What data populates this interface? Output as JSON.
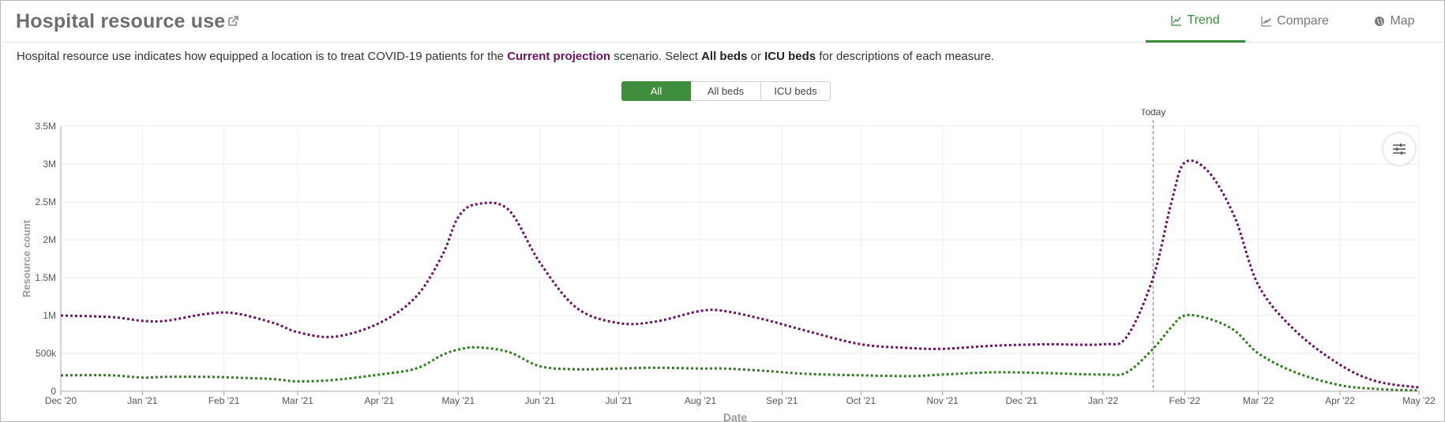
{
  "header": {
    "title": "Hospital resource use",
    "tabs": [
      {
        "label": "Trend",
        "active": true
      },
      {
        "label": "Compare",
        "active": false
      },
      {
        "label": "Map",
        "active": false
      }
    ]
  },
  "description": {
    "prefix": "Hospital resource use indicates how equipped a location is to treat COVID-19 patients for the ",
    "scenario": "Current projection",
    "middle": " scenario. Select ",
    "all_beds": "All beds",
    "or": " or ",
    "icu_beds": "ICU beds",
    "suffix": " for descriptions of each measure."
  },
  "toggle": {
    "options": [
      "All",
      "All beds",
      "ICU beds"
    ],
    "selected": "All"
  },
  "colors": {
    "accent": "#3e8e3e",
    "all_beds_series": "#6b1360",
    "icu_series": "#2e7d1e"
  },
  "chart_data": {
    "type": "line",
    "xlabel": "Date",
    "ylabel": "Resource count",
    "xlim": [
      "2020-12-01",
      "2022-05-01"
    ],
    "ylim": [
      0,
      3500000
    ],
    "x_ticks": [
      {
        "date": "2020-12-01",
        "label": "Dec '20"
      },
      {
        "date": "2021-01-01",
        "label": "Jan '21"
      },
      {
        "date": "2021-02-01",
        "label": "Feb '21"
      },
      {
        "date": "2021-03-01",
        "label": "Mar '21"
      },
      {
        "date": "2021-04-01",
        "label": "Apr '21"
      },
      {
        "date": "2021-05-01",
        "label": "May '21"
      },
      {
        "date": "2021-06-01",
        "label": "Jun '21"
      },
      {
        "date": "2021-07-01",
        "label": "Jul '21"
      },
      {
        "date": "2021-08-01",
        "label": "Aug '21"
      },
      {
        "date": "2021-09-01",
        "label": "Sep '21"
      },
      {
        "date": "2021-10-01",
        "label": "Oct '21"
      },
      {
        "date": "2021-11-01",
        "label": "Nov '21"
      },
      {
        "date": "2021-12-01",
        "label": "Dec '21"
      },
      {
        "date": "2022-01-01",
        "label": "Jan '22"
      },
      {
        "date": "2022-02-01",
        "label": "Feb '22"
      },
      {
        "date": "2022-03-01",
        "label": "Mar '22"
      },
      {
        "date": "2022-04-01",
        "label": "Apr '22"
      },
      {
        "date": "2022-05-01",
        "label": "May '22"
      }
    ],
    "y_ticks": [
      {
        "value": 0,
        "label": "0"
      },
      {
        "value": 500000,
        "label": "500k"
      },
      {
        "value": 1000000,
        "label": "1M"
      },
      {
        "value": 1500000,
        "label": "1.5M"
      },
      {
        "value": 2000000,
        "label": "2M"
      },
      {
        "value": 2500000,
        "label": "2.5M"
      },
      {
        "value": 3000000,
        "label": "3M"
      },
      {
        "value": 3500000,
        "label": "3.5M"
      }
    ],
    "today_marker": {
      "date": "2022-01-20",
      "label": "Today"
    },
    "grid": true,
    "series": [
      {
        "style": "dotted",
        "color": "#6b1360",
        "x": [
          "2020-12-01",
          "2020-12-20",
          "2021-01-01",
          "2021-01-10",
          "2021-01-25",
          "2021-02-05",
          "2021-02-20",
          "2021-03-01",
          "2021-03-15",
          "2021-04-01",
          "2021-04-15",
          "2021-04-25",
          "2021-05-01",
          "2021-05-08",
          "2021-05-20",
          "2021-06-01",
          "2021-06-15",
          "2021-07-01",
          "2021-07-15",
          "2021-08-01",
          "2021-08-10",
          "2021-08-25",
          "2021-09-10",
          "2021-10-01",
          "2021-10-20",
          "2021-11-01",
          "2021-11-20",
          "2021-12-10",
          "2022-01-01",
          "2022-01-10",
          "2022-01-20",
          "2022-01-27",
          "2022-02-01",
          "2022-02-10",
          "2022-02-20",
          "2022-03-01",
          "2022-03-15",
          "2022-04-01",
          "2022-04-15",
          "2022-05-01"
        ],
        "y": [
          1000000,
          980000,
          930000,
          930000,
          1020000,
          1030000,
          900000,
          780000,
          720000,
          900000,
          1250000,
          1800000,
          2300000,
          2470000,
          2400000,
          1700000,
          1100000,
          900000,
          920000,
          1060000,
          1060000,
          950000,
          800000,
          620000,
          570000,
          560000,
          600000,
          620000,
          620000,
          720000,
          1500000,
          2500000,
          3020000,
          2900000,
          2300000,
          1400000,
          800000,
          350000,
          130000,
          50000
        ]
      },
      {
        "style": "dotted",
        "color": "#2e7d1e",
        "x": [
          "2020-12-01",
          "2020-12-20",
          "2021-01-01",
          "2021-01-10",
          "2021-01-25",
          "2021-02-05",
          "2021-02-20",
          "2021-03-01",
          "2021-03-15",
          "2021-04-01",
          "2021-04-15",
          "2021-04-25",
          "2021-05-01",
          "2021-05-08",
          "2021-05-20",
          "2021-06-01",
          "2021-06-15",
          "2021-07-01",
          "2021-07-15",
          "2021-08-01",
          "2021-08-10",
          "2021-08-25",
          "2021-09-10",
          "2021-10-01",
          "2021-10-20",
          "2021-11-01",
          "2021-11-20",
          "2021-12-10",
          "2022-01-01",
          "2022-01-10",
          "2022-01-20",
          "2022-01-27",
          "2022-02-01",
          "2022-02-10",
          "2022-02-20",
          "2022-03-01",
          "2022-03-15",
          "2022-04-01",
          "2022-04-15",
          "2022-05-01"
        ],
        "y": [
          210000,
          210000,
          180000,
          190000,
          190000,
          180000,
          160000,
          130000,
          150000,
          220000,
          300000,
          480000,
          550000,
          580000,
          520000,
          330000,
          290000,
          300000,
          310000,
          300000,
          300000,
          270000,
          230000,
          210000,
          200000,
          220000,
          250000,
          240000,
          220000,
          250000,
          560000,
          850000,
          1000000,
          960000,
          800000,
          500000,
          250000,
          80000,
          30000,
          10000
        ]
      }
    ]
  }
}
